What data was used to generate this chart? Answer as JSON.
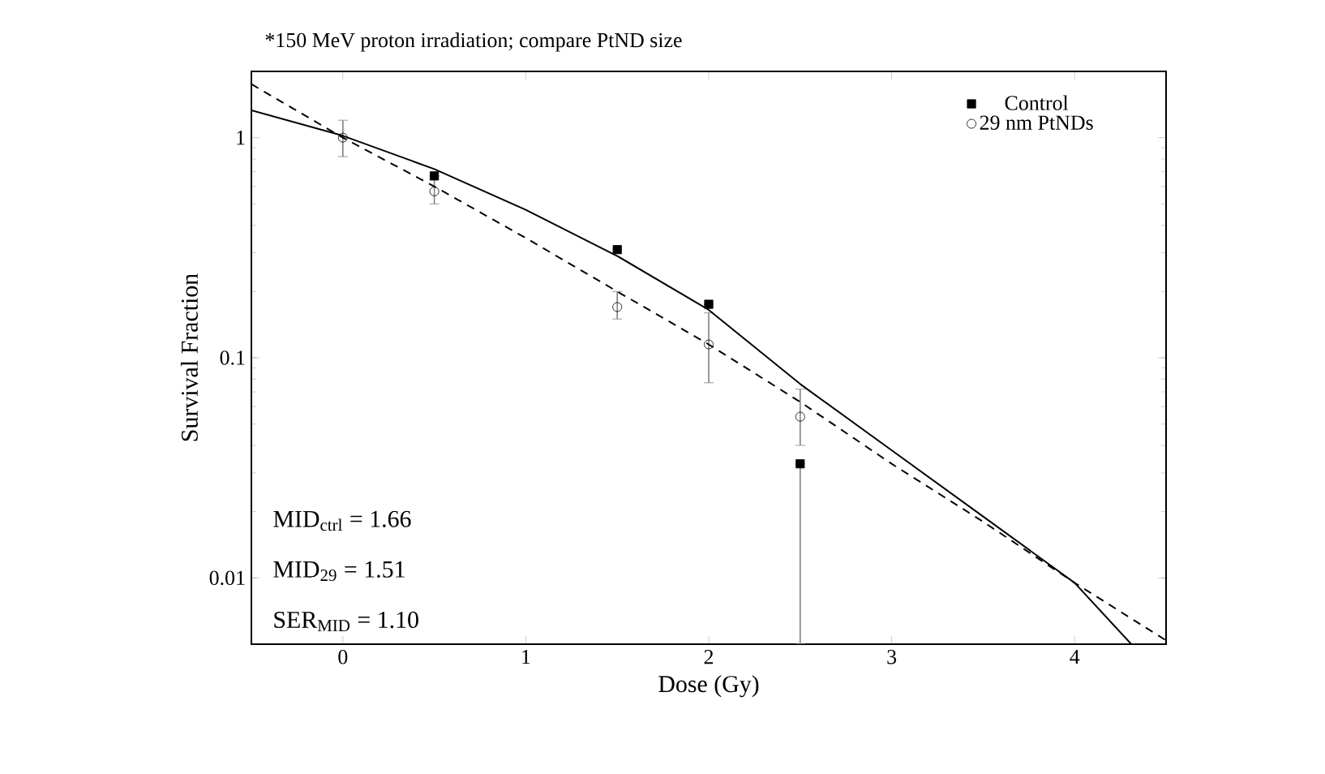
{
  "chart_data": {
    "type": "scatter",
    "title": "*150 MeV proton irradiation; compare PtND size",
    "xlabel": "Dose (Gy)",
    "ylabel": "Survival Fraction",
    "xlim": [
      -0.5,
      4.5
    ],
    "xticks": [
      0,
      1,
      2,
      3,
      4
    ],
    "ylim": [
      0.005,
      2
    ],
    "yticks": [
      0.01,
      0.1,
      1
    ],
    "log": "y",
    "legend": "top right",
    "series": [
      {
        "name": "Control",
        "marker": "square",
        "color": "#000000",
        "x": [
          0.5,
          1.5,
          2,
          2.5
        ],
        "values": [
          0.67,
          0.31,
          0.175,
          0.033
        ],
        "errors": [
          null,
          null,
          null,
          [
            0.005,
            0.033
          ]
        ]
      },
      {
        "name": "29 nm PtNDs",
        "marker": "circle",
        "color": "#000000",
        "x": [
          0,
          0.5,
          1.5,
          2,
          2.5
        ],
        "values": [
          1.0,
          0.57,
          0.17,
          0.115,
          0.054
        ],
        "errors": [
          [
            0.82,
            1.2
          ],
          [
            0.5,
            0.65
          ],
          [
            0.15,
            0.2
          ],
          [
            0.077,
            0.16
          ],
          [
            0.04,
            0.072
          ]
        ]
      },
      {
        "type": "line",
        "line_style": "solid",
        "color": "#000000",
        "x": [
          -0.5,
          0,
          0.5,
          1,
          1.5,
          2,
          2.5,
          3,
          3.5,
          4,
          4.31
        ],
        "values": [
          1.33,
          1.02,
          0.72,
          0.47,
          0.29,
          0.165,
          0.076,
          0.038,
          0.019,
          0.0095,
          0.005
        ]
      },
      {
        "type": "line",
        "line_style": "dashed",
        "color": "#000000",
        "x": [
          -0.5,
          0,
          0.5,
          1,
          1.5,
          2,
          2.5,
          3,
          3.5,
          4,
          4.5
        ],
        "values": [
          1.75,
          1.0,
          0.6,
          0.35,
          0.2,
          0.115,
          0.063,
          0.033,
          0.018,
          0.0095,
          0.0052
        ]
      }
    ],
    "annotations": [
      "MID$_{ctrl}$ = 1.66",
      "MID$_{29}$ = 1.51",
      "SER$_{MID}$ = 1.10"
    ]
  }
}
